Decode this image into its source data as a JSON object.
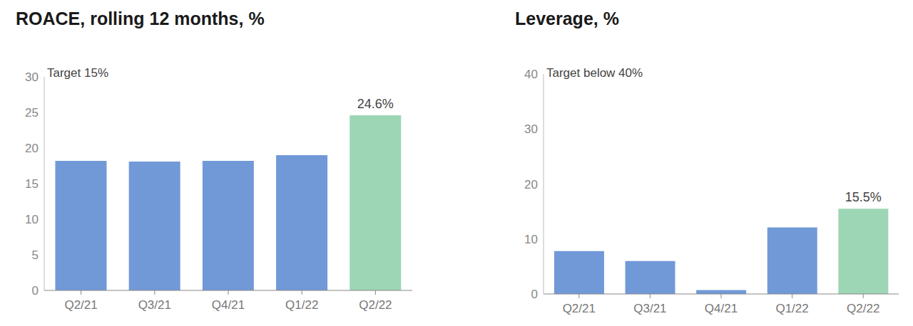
{
  "chart_data": [
    {
      "type": "bar",
      "title": "ROACE, rolling 12 months, %",
      "annotation": "Target 15%",
      "categories": [
        "Q2/21",
        "Q3/21",
        "Q4/21",
        "Q1/22",
        "Q2/22"
      ],
      "values": [
        18.2,
        18.1,
        18.2,
        19.0,
        24.6
      ],
      "value_labels": [
        null,
        null,
        null,
        null,
        "24.6%"
      ],
      "colors": [
        "#7199d8",
        "#7199d8",
        "#7199d8",
        "#7199d8",
        "#9dd6b5"
      ],
      "ylim": [
        0,
        30
      ],
      "yticks": [
        0,
        5,
        10,
        15,
        20,
        25,
        30
      ],
      "grid": false
    },
    {
      "type": "bar",
      "title": "Leverage, %",
      "annotation": "Target below 40%",
      "categories": [
        "Q2/21",
        "Q3/21",
        "Q4/21",
        "Q1/22",
        "Q2/22"
      ],
      "values": [
        7.8,
        6.0,
        0.7,
        12.1,
        15.5
      ],
      "value_labels": [
        null,
        null,
        null,
        null,
        "15.5%"
      ],
      "colors": [
        "#7199d8",
        "#7199d8",
        "#7199d8",
        "#7199d8",
        "#9dd6b5"
      ],
      "ylim": [
        0,
        40
      ],
      "yticks": [
        0,
        10,
        20,
        30,
        40
      ],
      "grid": false
    }
  ]
}
